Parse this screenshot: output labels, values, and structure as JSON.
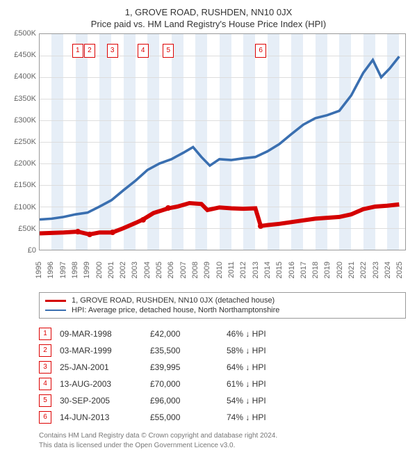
{
  "title": "1, GROVE ROAD, RUSHDEN, NN10 0JX",
  "subtitle": "Price paid vs. HM Land Registry's House Price Index (HPI)",
  "chart": {
    "type": "line",
    "x_domain": [
      1995,
      2025.5
    ],
    "y_domain": [
      0,
      500000
    ],
    "y_ticks": [
      0,
      50000,
      100000,
      150000,
      200000,
      250000,
      300000,
      350000,
      400000,
      450000,
      500000
    ],
    "y_tick_labels": [
      "£0",
      "£50K",
      "£100K",
      "£150K",
      "£200K",
      "£250K",
      "£300K",
      "£350K",
      "£400K",
      "£450K",
      "£500K"
    ],
    "x_ticks": [
      1995,
      1996,
      1997,
      1998,
      1999,
      2000,
      2001,
      2002,
      2003,
      2004,
      2005,
      2006,
      2007,
      2008,
      2009,
      2010,
      2011,
      2012,
      2013,
      2014,
      2015,
      2016,
      2017,
      2018,
      2019,
      2020,
      2021,
      2022,
      2023,
      2024,
      2025
    ],
    "background_color": "#ffffff",
    "grid_color": "#dddddd",
    "alt_band_color": "#e6eef7",
    "property_color": "#d40000",
    "hpi_color": "#3a6fb0",
    "property_line_width": 2,
    "hpi_line_width": 1.2,
    "series_property": [
      [
        1995.0,
        38000
      ],
      [
        1996.0,
        39000
      ],
      [
        1997.0,
        40000
      ],
      [
        1998.18,
        42000
      ],
      [
        1999.17,
        35500
      ],
      [
        2000.0,
        40000
      ],
      [
        2001.07,
        39995
      ],
      [
        2002.0,
        50000
      ],
      [
        2003.0,
        62000
      ],
      [
        2003.62,
        70000
      ],
      [
        2004.5,
        85000
      ],
      [
        2005.74,
        96000
      ],
      [
        2006.5,
        100000
      ],
      [
        2007.5,
        108000
      ],
      [
        2008.5,
        106000
      ],
      [
        2009.0,
        92000
      ],
      [
        2010.0,
        98000
      ],
      [
        2011.0,
        96000
      ],
      [
        2012.0,
        95000
      ],
      [
        2013.0,
        96000
      ],
      [
        2013.45,
        55000
      ],
      [
        2014.0,
        57000
      ],
      [
        2015.0,
        60000
      ],
      [
        2016.0,
        64000
      ],
      [
        2017.0,
        68000
      ],
      [
        2018.0,
        72000
      ],
      [
        2019.0,
        74000
      ],
      [
        2020.0,
        76000
      ],
      [
        2021.0,
        82000
      ],
      [
        2022.0,
        94000
      ],
      [
        2023.0,
        100000
      ],
      [
        2024.0,
        102000
      ],
      [
        2025.0,
        105000
      ]
    ],
    "series_hpi": [
      [
        1995.0,
        70000
      ],
      [
        1996.0,
        72000
      ],
      [
        1997.0,
        76000
      ],
      [
        1998.0,
        82000
      ],
      [
        1999.0,
        86000
      ],
      [
        2000.0,
        100000
      ],
      [
        2001.0,
        115000
      ],
      [
        2002.0,
        138000
      ],
      [
        2003.0,
        160000
      ],
      [
        2004.0,
        185000
      ],
      [
        2005.0,
        200000
      ],
      [
        2006.0,
        210000
      ],
      [
        2007.0,
        225000
      ],
      [
        2007.8,
        238000
      ],
      [
        2008.5,
        215000
      ],
      [
        2009.2,
        195000
      ],
      [
        2010.0,
        210000
      ],
      [
        2011.0,
        208000
      ],
      [
        2012.0,
        212000
      ],
      [
        2013.0,
        215000
      ],
      [
        2014.0,
        228000
      ],
      [
        2015.0,
        245000
      ],
      [
        2016.0,
        268000
      ],
      [
        2017.0,
        290000
      ],
      [
        2018.0,
        305000
      ],
      [
        2019.0,
        312000
      ],
      [
        2020.0,
        322000
      ],
      [
        2021.0,
        358000
      ],
      [
        2022.0,
        410000
      ],
      [
        2022.8,
        440000
      ],
      [
        2023.5,
        400000
      ],
      [
        2024.2,
        420000
      ],
      [
        2025.0,
        448000
      ]
    ],
    "transaction_markers": [
      {
        "n": "1",
        "x": 1998.18,
        "y": 42000
      },
      {
        "n": "2",
        "x": 1999.17,
        "y": 35500
      },
      {
        "n": "3",
        "x": 2001.07,
        "y": 39995
      },
      {
        "n": "4",
        "x": 2003.62,
        "y": 70000
      },
      {
        "n": "5",
        "x": 2005.74,
        "y": 96000
      },
      {
        "n": "6",
        "x": 2013.45,
        "y": 55000
      }
    ]
  },
  "legend": {
    "property": "1, GROVE ROAD, RUSHDEN, NN10 0JX (detached house)",
    "hpi": "HPI: Average price, detached house, North Northamptonshire"
  },
  "transactions": [
    {
      "n": "1",
      "date": "09-MAR-1998",
      "price": "£42,000",
      "diff": "46% ↓ HPI"
    },
    {
      "n": "2",
      "date": "03-MAR-1999",
      "price": "£35,500",
      "diff": "58% ↓ HPI"
    },
    {
      "n": "3",
      "date": "25-JAN-2001",
      "price": "£39,995",
      "diff": "64% ↓ HPI"
    },
    {
      "n": "4",
      "date": "13-AUG-2003",
      "price": "£70,000",
      "diff": "61% ↓ HPI"
    },
    {
      "n": "5",
      "date": "30-SEP-2005",
      "price": "£96,000",
      "diff": "54% ↓ HPI"
    },
    {
      "n": "6",
      "date": "14-JUN-2013",
      "price": "£55,000",
      "diff": "74% ↓ HPI"
    }
  ],
  "footer_line1": "Contains HM Land Registry data © Crown copyright and database right 2024.",
  "footer_line2": "This data is licensed under the Open Government Licence v3.0."
}
